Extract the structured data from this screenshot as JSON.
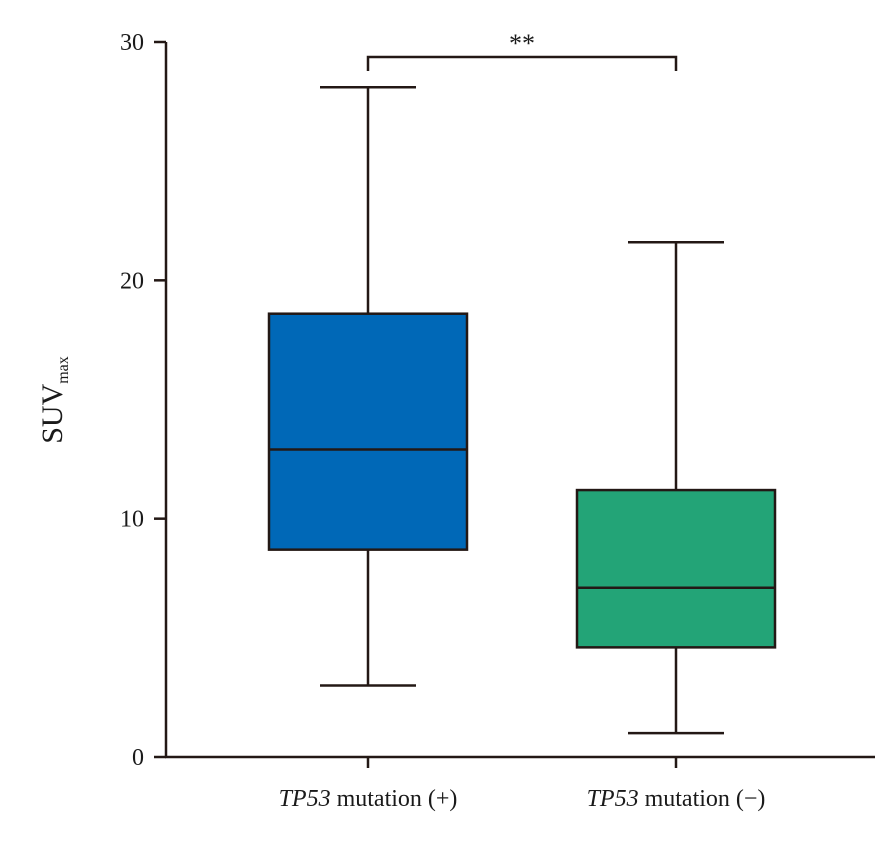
{
  "chart_data": {
    "type": "box",
    "ylabel": "SUV",
    "ylabel_subscript": "max",
    "ylim": [
      0,
      30
    ],
    "yticks": [
      "0",
      "10",
      "20",
      "30"
    ],
    "categories": [
      {
        "italic": "TP53",
        "rest": " mutation (+)"
      },
      {
        "italic": "TP53",
        "rest": " mutation (−)"
      }
    ],
    "boxes": [
      {
        "whisker_low": 3.0,
        "q1": 8.7,
        "median": 12.9,
        "q3": 18.6,
        "whisker_high": 28.1,
        "color": "#0068B7"
      },
      {
        "whisker_low": 1.0,
        "q1": 4.6,
        "median": 7.1,
        "q3": 11.2,
        "whisker_high": 21.6,
        "color": "#23A477"
      }
    ],
    "significance": {
      "text": "**",
      "between": [
        0,
        1
      ]
    }
  }
}
